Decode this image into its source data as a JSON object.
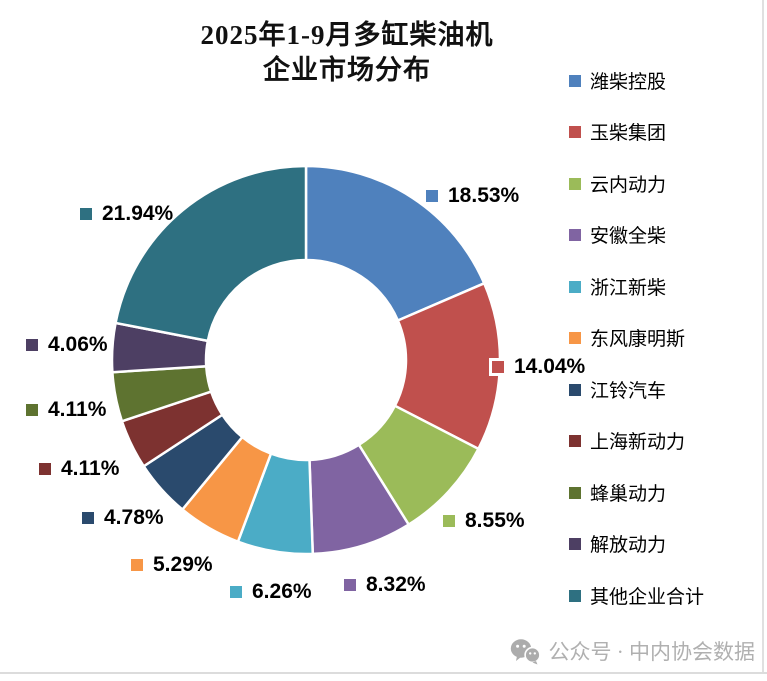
{
  "title_lines": {
    "line1": "2025年1-9月多缸柴油机",
    "line2": "企业市场分布"
  },
  "chart_data": {
    "type": "pie",
    "subtype": "donut",
    "title": "2025年1-9月多缸柴油机 企业市场分布",
    "legend_position": "right",
    "start_angle_deg": 0,
    "direction": "clockwise",
    "unit": "%",
    "items": [
      {
        "name": "潍柴控股",
        "value": 18.53,
        "label": "18.53%",
        "color": "#4F81BD"
      },
      {
        "name": "玉柴集团",
        "value": 14.04,
        "label": "14.04%",
        "color": "#C0504D"
      },
      {
        "name": "云内动力",
        "value": 8.55,
        "label": "8.55%",
        "color": "#9BBB59"
      },
      {
        "name": "安徽全柴",
        "value": 8.32,
        "label": "8.32%",
        "color": "#8064A2"
      },
      {
        "name": "浙江新柴",
        "value": 6.26,
        "label": "6.26%",
        "color": "#4BACC6"
      },
      {
        "name": "东风康明斯",
        "value": 5.29,
        "label": "5.29%",
        "color": "#F79646"
      },
      {
        "name": "江铃汽车",
        "value": 4.78,
        "label": "4.78%",
        "color": "#2A4A6D"
      },
      {
        "name": "上海新动力",
        "value": 4.11,
        "label": "4.11%",
        "color": "#7D3230"
      },
      {
        "name": "蜂巢动力",
        "value": 4.11,
        "label": "4.11%",
        "color": "#5E7330"
      },
      {
        "name": "解放动力",
        "value": 4.06,
        "label": "4.06%",
        "color": "#4D3F63"
      },
      {
        "name": "其他企业合计",
        "value": 21.94,
        "label": "21.94%",
        "color": "#2E7081"
      }
    ]
  },
  "footer": {
    "text": "公众号 · 中内协会数据",
    "icon": "wechat-icon"
  }
}
